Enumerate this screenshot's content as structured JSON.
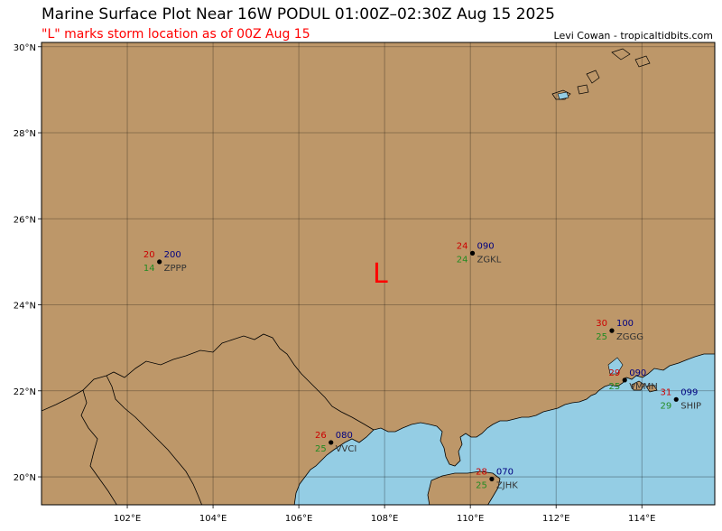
{
  "title": "Marine Surface Plot Near 16W PODUL 01:00Z–02:30Z Aug 15 2025",
  "subtitle": "\"L\" marks storm location as of 00Z Aug 15",
  "credit": "Levi Cowan - tropicaltidbits.com",
  "colors": {
    "land": "#bd9769",
    "water": "#94cde4",
    "temp": "#cc0000",
    "dewpoint": "#228b22",
    "pressure": "#000080",
    "storm": "#ff0000",
    "id": "#333333"
  },
  "extent": {
    "lon": [
      100,
      115.7
    ],
    "lat": [
      19.35,
      30.1
    ]
  },
  "lon_ticks": [
    {
      "value": 102,
      "label": "102°E"
    },
    {
      "value": 104,
      "label": "104°E"
    },
    {
      "value": 106,
      "label": "106°E"
    },
    {
      "value": 108,
      "label": "108°E"
    },
    {
      "value": 110,
      "label": "110°E"
    },
    {
      "value": 112,
      "label": "112°E"
    },
    {
      "value": 114,
      "label": "114°E"
    }
  ],
  "lat_ticks": [
    {
      "value": 20,
      "label": "20°N"
    },
    {
      "value": 22,
      "label": "22°N"
    },
    {
      "value": 24,
      "label": "24°N"
    },
    {
      "value": 26,
      "label": "26°N"
    },
    {
      "value": 28,
      "label": "28°N"
    },
    {
      "value": 30,
      "label": "30°N"
    }
  ],
  "storm": {
    "label": "L",
    "lon": 107.9,
    "lat": 24.75
  },
  "stations": [
    {
      "id": "ZPPP",
      "lon": 102.75,
      "lat": 25.0,
      "temp": "20",
      "dew": "14",
      "pres": "200"
    },
    {
      "id": "ZGKL",
      "lon": 110.05,
      "lat": 25.2,
      "temp": "24",
      "dew": "24",
      "pres": "090"
    },
    {
      "id": "ZGGG",
      "lon": 113.3,
      "lat": 23.4,
      "temp": "30",
      "dew": "25",
      "pres": "100"
    },
    {
      "id": "VMMH",
      "lon": 113.6,
      "lat": 22.25,
      "temp": "29",
      "dew": "25",
      "pres": "090"
    },
    {
      "id": "SHIP",
      "lon": 114.8,
      "lat": 21.8,
      "temp": "31",
      "dew": "29",
      "pres": "099"
    },
    {
      "id": "VVCI",
      "lon": 106.75,
      "lat": 20.8,
      "temp": "26",
      "dew": "25",
      "pres": "080"
    },
    {
      "id": "ZJHK",
      "lon": 110.5,
      "lat": 19.95,
      "temp": "28",
      "dew": "25",
      "pres": "070"
    }
  ]
}
